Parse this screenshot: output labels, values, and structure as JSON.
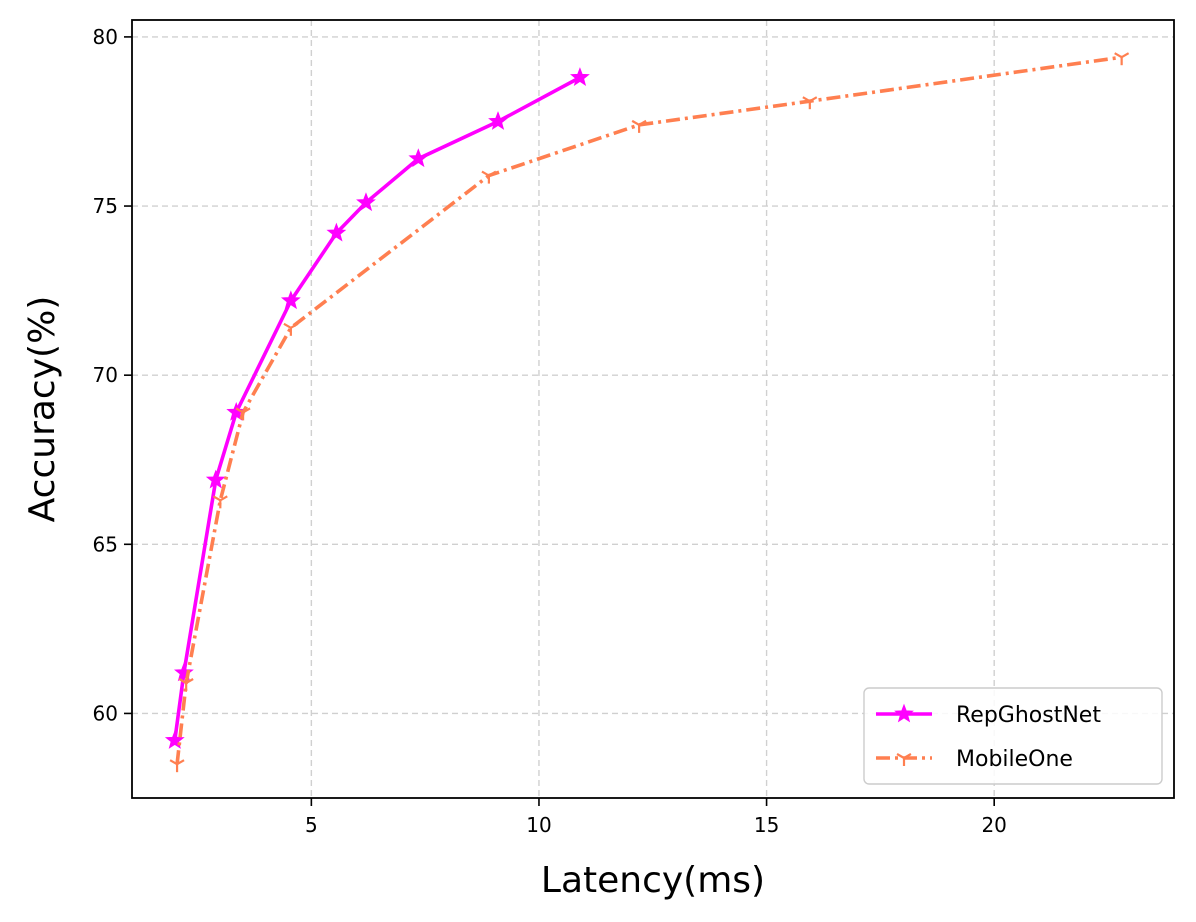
{
  "chart_data": {
    "type": "line",
    "xlabel": "Latency(ms)",
    "ylabel": "Accuracy(%)",
    "xlim": [
      1.06,
      23.95
    ],
    "ylim": [
      57.5,
      80.5
    ],
    "xticks": [
      5,
      10,
      15,
      20
    ],
    "yticks": [
      60,
      65,
      70,
      75,
      80
    ],
    "grid": true,
    "legend_position": "lower right",
    "series": [
      {
        "name": "RepGhostNet",
        "color": "#ff00ff",
        "line_style": "solid",
        "marker": "star",
        "x": [
          2.0,
          2.2,
          2.9,
          3.35,
          4.55,
          5.55,
          6.2,
          7.35,
          9.1,
          10.9
        ],
        "y": [
          59.2,
          61.2,
          66.9,
          68.9,
          72.2,
          74.2,
          75.1,
          76.4,
          77.5,
          78.8
        ]
      },
      {
        "name": "MobileOne",
        "color": "#ff7f50",
        "line_style": "dashdot",
        "marker": "tri_down",
        "x": [
          2.05,
          2.25,
          3.0,
          3.5,
          4.55,
          8.9,
          12.2,
          15.95,
          22.8
        ],
        "y": [
          58.5,
          60.9,
          66.3,
          68.9,
          71.4,
          75.9,
          77.4,
          78.1,
          79.4
        ]
      }
    ]
  }
}
